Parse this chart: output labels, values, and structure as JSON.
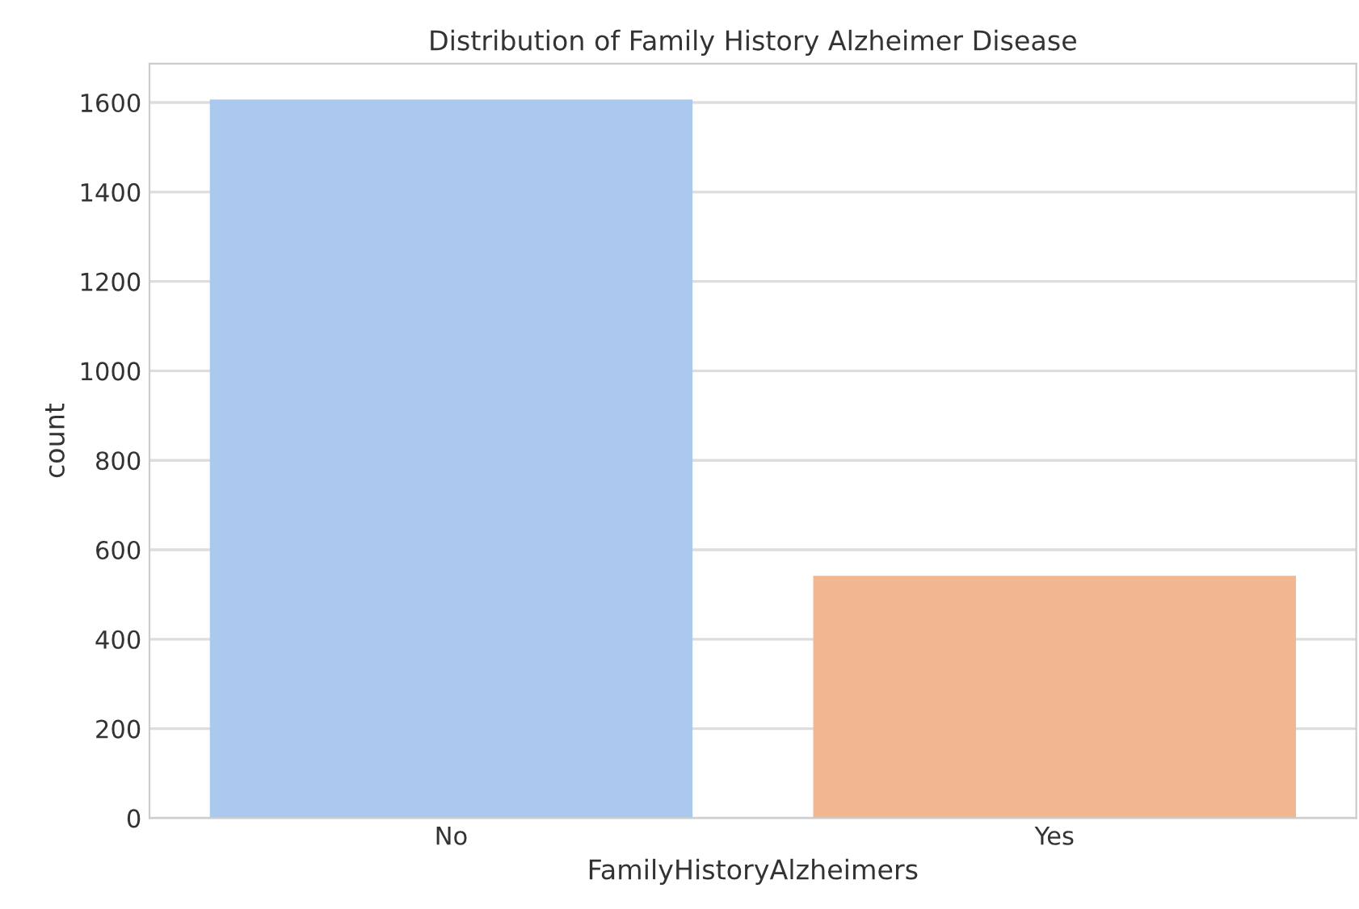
{
  "chart_data": {
    "type": "bar",
    "title": "Distribution of Family History Alzheimer Disease",
    "xlabel": "FamilyHistoryAlzheimers",
    "ylabel": "count",
    "categories": [
      "No",
      "Yes"
    ],
    "values": [
      1607,
      542
    ],
    "colors": [
      "#abc9ee",
      "#f0b790"
    ],
    "ylim": [
      0,
      1687
    ],
    "yticks": [
      0,
      200,
      400,
      600,
      800,
      1000,
      1200,
      1400,
      1600
    ],
    "grid": "y"
  }
}
